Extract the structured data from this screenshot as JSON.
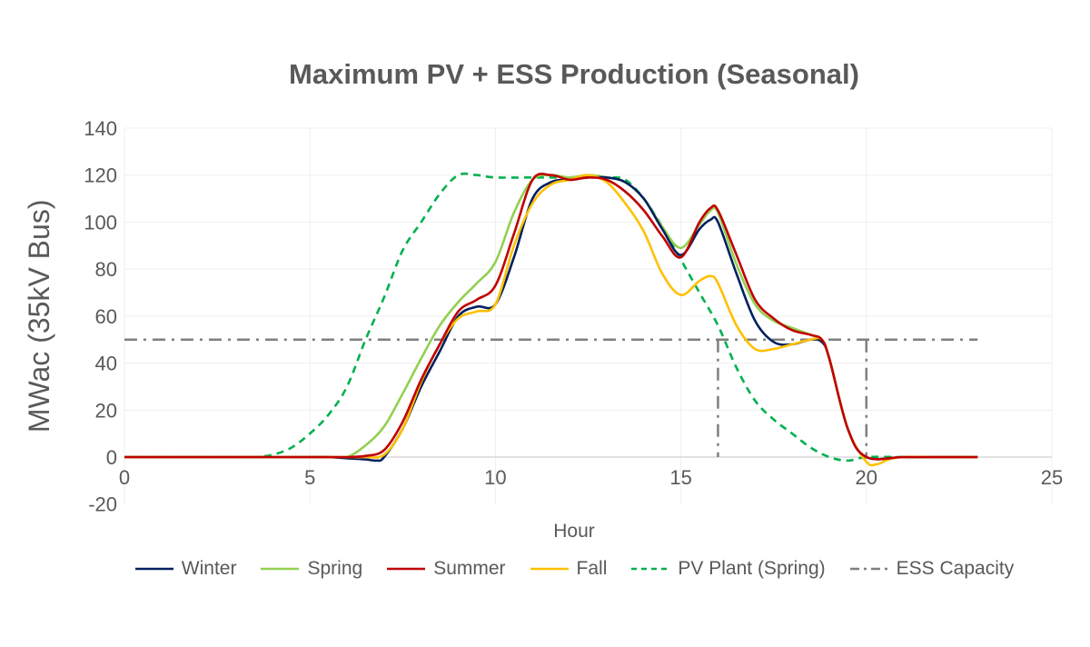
{
  "chart_data": {
    "type": "line",
    "title": "Maximum PV + ESS Production (Seasonal)",
    "xlabel": "Hour",
    "ylabel": "MWac (35kV Bus)",
    "xlim": [
      0,
      25
    ],
    "ylim": [
      -20,
      140
    ],
    "xticks": [
      0,
      5,
      10,
      15,
      20,
      25
    ],
    "yticks": [
      -20,
      0,
      20,
      40,
      60,
      80,
      100,
      120,
      140
    ],
    "grid": true,
    "legend_position": "bottom",
    "series": [
      {
        "name": "Winter",
        "color": "#002060",
        "style": "solid",
        "points": [
          [
            0,
            0
          ],
          [
            1,
            0
          ],
          [
            2,
            0
          ],
          [
            3,
            0
          ],
          [
            4,
            0
          ],
          [
            5,
            0
          ],
          [
            5.5,
            0
          ],
          [
            6,
            -0.5
          ],
          [
            6.5,
            -1
          ],
          [
            6.8,
            -1.5
          ],
          [
            7,
            0
          ],
          [
            7.5,
            12
          ],
          [
            8,
            30
          ],
          [
            8.5,
            45
          ],
          [
            9,
            60
          ],
          [
            9.5,
            64
          ],
          [
            10,
            65
          ],
          [
            10.5,
            85
          ],
          [
            11,
            110
          ],
          [
            11.5,
            117
          ],
          [
            12,
            118
          ],
          [
            12.5,
            119
          ],
          [
            13,
            119
          ],
          [
            13.5,
            117
          ],
          [
            14,
            110
          ],
          [
            14.5,
            97
          ],
          [
            15,
            86
          ],
          [
            15.5,
            97
          ],
          [
            15.8,
            101
          ],
          [
            16,
            100
          ],
          [
            16.5,
            78
          ],
          [
            17,
            58
          ],
          [
            17.5,
            49
          ],
          [
            18,
            48
          ],
          [
            18.5,
            50
          ],
          [
            18.8,
            49
          ],
          [
            19,
            42
          ],
          [
            19.5,
            12
          ],
          [
            20,
            0
          ],
          [
            21,
            0
          ],
          [
            22,
            0
          ],
          [
            23,
            0
          ]
        ]
      },
      {
        "name": "Spring",
        "color": "#92D050",
        "style": "solid",
        "points": [
          [
            0,
            0
          ],
          [
            1,
            0
          ],
          [
            2,
            0
          ],
          [
            3,
            0
          ],
          [
            4,
            0
          ],
          [
            5,
            0
          ],
          [
            5.5,
            0
          ],
          [
            6,
            0
          ],
          [
            6.5,
            5
          ],
          [
            7,
            13
          ],
          [
            7.5,
            27
          ],
          [
            8,
            42
          ],
          [
            8.5,
            56
          ],
          [
            9,
            66
          ],
          [
            9.5,
            74
          ],
          [
            10,
            83
          ],
          [
            10.5,
            104
          ],
          [
            11,
            118
          ],
          [
            11.5,
            120
          ],
          [
            12,
            119
          ],
          [
            12.5,
            120
          ],
          [
            13,
            119
          ],
          [
            13.5,
            117
          ],
          [
            14,
            110
          ],
          [
            14.5,
            98
          ],
          [
            15,
            89
          ],
          [
            15.5,
            99
          ],
          [
            15.8,
            105
          ],
          [
            16,
            104
          ],
          [
            16.5,
            82
          ],
          [
            17,
            65
          ],
          [
            17.5,
            58
          ],
          [
            18,
            55
          ],
          [
            18.5,
            52
          ],
          [
            18.8,
            50
          ],
          [
            19,
            42
          ],
          [
            19.5,
            12
          ],
          [
            20,
            0
          ],
          [
            21,
            0
          ],
          [
            22,
            0
          ],
          [
            23,
            0
          ]
        ]
      },
      {
        "name": "Summer",
        "color": "#C00000",
        "style": "solid",
        "points": [
          [
            0,
            0
          ],
          [
            1,
            0
          ],
          [
            2,
            0
          ],
          [
            3,
            0
          ],
          [
            4,
            0
          ],
          [
            5,
            0
          ],
          [
            5.5,
            0
          ],
          [
            6,
            0
          ],
          [
            6.5,
            0.5
          ],
          [
            7,
            3
          ],
          [
            7.5,
            15
          ],
          [
            8,
            33
          ],
          [
            8.5,
            48
          ],
          [
            9,
            62
          ],
          [
            9.5,
            67
          ],
          [
            10,
            73
          ],
          [
            10.5,
            95
          ],
          [
            11,
            118
          ],
          [
            11.5,
            120
          ],
          [
            12,
            118
          ],
          [
            12.5,
            119
          ],
          [
            13,
            118
          ],
          [
            13.5,
            113
          ],
          [
            14,
            105
          ],
          [
            14.5,
            94
          ],
          [
            15,
            85
          ],
          [
            15.5,
            100
          ],
          [
            15.8,
            106
          ],
          [
            16,
            105
          ],
          [
            16.5,
            86
          ],
          [
            17,
            67
          ],
          [
            17.5,
            59
          ],
          [
            18,
            54
          ],
          [
            18.5,
            52
          ],
          [
            18.8,
            50
          ],
          [
            19,
            42
          ],
          [
            19.5,
            12
          ],
          [
            20,
            0
          ],
          [
            21,
            0
          ],
          [
            22,
            0
          ],
          [
            23,
            0
          ]
        ]
      },
      {
        "name": "Fall",
        "color": "#FFC000",
        "style": "solid",
        "points": [
          [
            0,
            0
          ],
          [
            1,
            0
          ],
          [
            2,
            0
          ],
          [
            3,
            0
          ],
          [
            4,
            0
          ],
          [
            5,
            0
          ],
          [
            5.5,
            0
          ],
          [
            6,
            0
          ],
          [
            6.5,
            0
          ],
          [
            7,
            1
          ],
          [
            7.5,
            12
          ],
          [
            8,
            32
          ],
          [
            8.5,
            48
          ],
          [
            9,
            59
          ],
          [
            9.5,
            62
          ],
          [
            10,
            65
          ],
          [
            10.5,
            90
          ],
          [
            11,
            108
          ],
          [
            11.5,
            116
          ],
          [
            12,
            118
          ],
          [
            12.5,
            120
          ],
          [
            13,
            117
          ],
          [
            13.5,
            108
          ],
          [
            14,
            96
          ],
          [
            14.5,
            78
          ],
          [
            15,
            69
          ],
          [
            15.5,
            75
          ],
          [
            15.8,
            77
          ],
          [
            16,
            74
          ],
          [
            16.5,
            56
          ],
          [
            17,
            46
          ],
          [
            17.5,
            46
          ],
          [
            18,
            48
          ],
          [
            18.5,
            50
          ],
          [
            18.8,
            50
          ],
          [
            19,
            42
          ],
          [
            19.5,
            12
          ],
          [
            20,
            -2
          ],
          [
            20.3,
            -3
          ],
          [
            20.6,
            -1
          ],
          [
            21,
            0
          ],
          [
            22,
            0
          ],
          [
            23,
            0
          ]
        ]
      },
      {
        "name": "PV Plant (Spring)",
        "color": "#00B050",
        "style": "dashed",
        "points": [
          [
            0,
            0
          ],
          [
            1,
            0
          ],
          [
            2,
            0
          ],
          [
            3,
            0
          ],
          [
            3.5,
            0
          ],
          [
            4,
            1
          ],
          [
            4.5,
            4
          ],
          [
            5,
            10
          ],
          [
            5.5,
            18
          ],
          [
            6,
            30
          ],
          [
            6.5,
            50
          ],
          [
            7,
            68
          ],
          [
            7.5,
            88
          ],
          [
            8,
            100
          ],
          [
            8.5,
            112
          ],
          [
            9,
            120
          ],
          [
            9.5,
            120
          ],
          [
            10,
            119
          ],
          [
            11,
            119
          ],
          [
            12,
            119
          ],
          [
            13,
            119
          ],
          [
            13.5,
            118
          ],
          [
            14,
            110
          ],
          [
            14.5,
            98
          ],
          [
            15,
            84
          ],
          [
            15.5,
            70
          ],
          [
            16,
            56
          ],
          [
            16.5,
            38
          ],
          [
            17,
            24
          ],
          [
            17.5,
            16
          ],
          [
            18,
            10
          ],
          [
            18.5,
            4
          ],
          [
            19,
            0
          ],
          [
            19.5,
            -1.5
          ],
          [
            20,
            0
          ],
          [
            21,
            0
          ],
          [
            22,
            0
          ],
          [
            23,
            0
          ]
        ]
      },
      {
        "name": "ESS Capacity",
        "color": "#7F7F7F",
        "style": "dashdot",
        "points": [
          [
            0,
            50
          ],
          [
            23,
            50
          ]
        ],
        "verticals": [
          16,
          20
        ]
      }
    ]
  }
}
